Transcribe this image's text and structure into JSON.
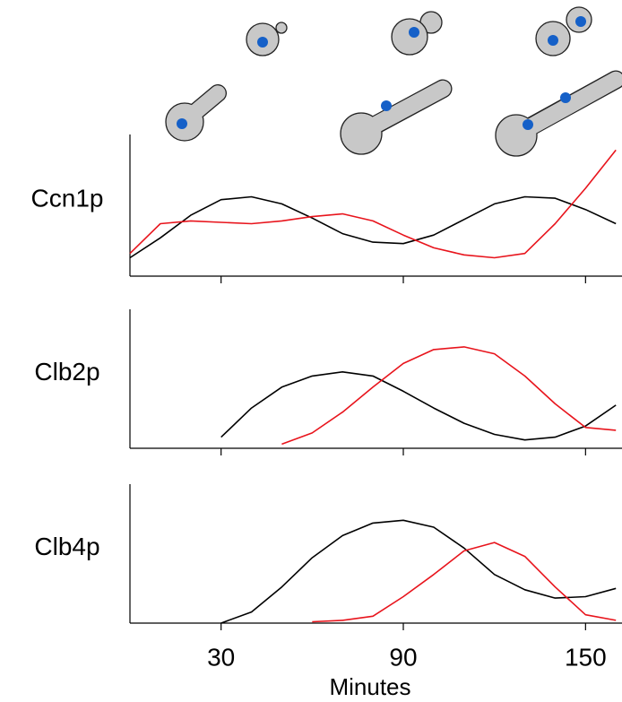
{
  "chart_data": [
    {
      "type": "line",
      "title": "Ccn1p",
      "x": [
        0,
        10,
        20,
        30,
        40,
        50,
        60,
        70,
        80,
        90,
        100,
        110,
        120,
        130,
        140,
        150,
        160
      ],
      "xlim": [
        0,
        162
      ],
      "ylim": [
        0,
        1
      ],
      "series": [
        {
          "color": "#000000",
          "values": [
            0.13,
            0.27,
            0.43,
            0.54,
            0.56,
            0.51,
            0.41,
            0.3,
            0.24,
            0.23,
            0.29,
            0.4,
            0.51,
            0.56,
            0.55,
            0.47,
            0.37
          ]
        },
        {
          "color": "#e8141c",
          "values": [
            0.16,
            0.37,
            0.39,
            0.38,
            0.37,
            0.39,
            0.42,
            0.44,
            0.39,
            0.29,
            0.2,
            0.15,
            0.13,
            0.16,
            0.37,
            0.62,
            0.89
          ]
        }
      ]
    },
    {
      "type": "line",
      "title": "Clb2p",
      "x": [
        0,
        10,
        20,
        30,
        40,
        50,
        60,
        70,
        80,
        90,
        100,
        110,
        120,
        130,
        140,
        150,
        160
      ],
      "xlim": [
        0,
        162
      ],
      "ylim": [
        0,
        1
      ],
      "series": [
        {
          "color": "#000000",
          "values": [
            null,
            null,
            null,
            0.08,
            0.29,
            0.44,
            0.52,
            0.55,
            0.52,
            0.41,
            0.29,
            0.18,
            0.1,
            0.06,
            0.08,
            0.16,
            0.31
          ]
        },
        {
          "color": "#e8141c",
          "values": [
            null,
            null,
            null,
            null,
            null,
            0.03,
            0.11,
            0.26,
            0.44,
            0.61,
            0.71,
            0.73,
            0.68,
            0.52,
            0.32,
            0.15,
            0.13
          ]
        }
      ]
    },
    {
      "type": "line",
      "title": "Clb4p",
      "x": [
        0,
        10,
        20,
        30,
        40,
        50,
        60,
        70,
        80,
        90,
        100,
        110,
        120,
        130,
        140,
        150,
        160
      ],
      "xlim": [
        0,
        162
      ],
      "ylim": [
        0,
        1
      ],
      "xticks": [
        30,
        90,
        150
      ],
      "xlabel": "Minutes",
      "series": [
        {
          "color": "#000000",
          "values": [
            null,
            null,
            null,
            0.0,
            0.08,
            0.26,
            0.47,
            0.63,
            0.72,
            0.74,
            0.69,
            0.54,
            0.35,
            0.24,
            0.18,
            0.19,
            0.25
          ]
        },
        {
          "color": "#e8141c",
          "values": [
            null,
            null,
            null,
            null,
            null,
            null,
            0.01,
            0.02,
            0.05,
            0.19,
            0.35,
            0.52,
            0.58,
            0.48,
            0.26,
            0.06,
            0.02
          ]
        }
      ]
    }
  ]
}
